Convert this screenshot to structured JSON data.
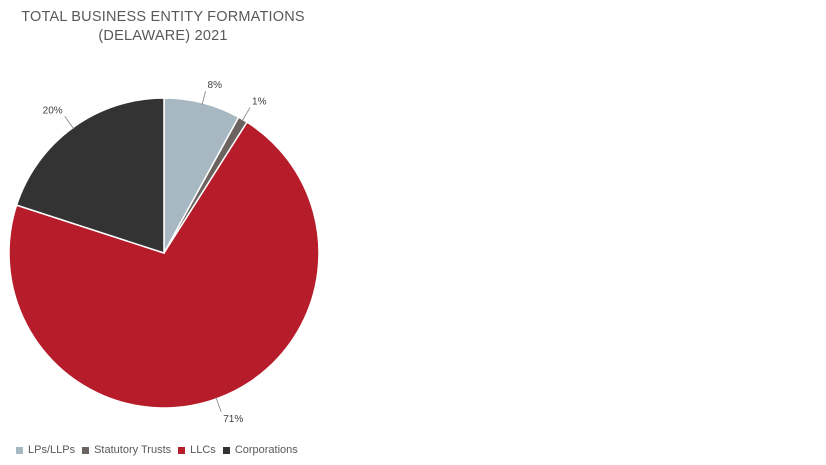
{
  "chart_data": {
    "type": "pie",
    "title": "TOTAL BUSINESS ENTITY FORMATIONS",
    "subtitle": "(DELAWARE) 2021",
    "categories": [
      "LPs/LLPs",
      "Statutory Trusts",
      "LLCs",
      "Corporations"
    ],
    "values": [
      8,
      1,
      71,
      20
    ],
    "labels": [
      "8%",
      "1%",
      "71%",
      "20%"
    ],
    "colors": [
      "#a7b8c2",
      "#6b6360",
      "#b71c2a",
      "#333333"
    ],
    "legend_position": "bottom"
  }
}
